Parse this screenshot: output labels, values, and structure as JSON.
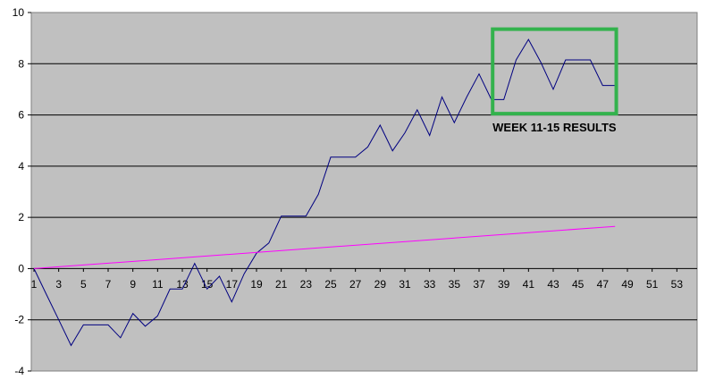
{
  "chart_data": {
    "type": "line",
    "title": "",
    "xlabel": "",
    "ylabel": "",
    "ylim": [
      -4,
      10
    ],
    "yticks": [
      -4,
      -2,
      0,
      2,
      4,
      6,
      8,
      10
    ],
    "xlim": [
      1,
      55
    ],
    "xticks": [
      1,
      3,
      5,
      7,
      9,
      11,
      13,
      15,
      17,
      19,
      21,
      23,
      25,
      27,
      29,
      31,
      33,
      35,
      37,
      39,
      41,
      43,
      45,
      47,
      49,
      51,
      53
    ],
    "grid": "horizontal",
    "plot_background": "#c0c0c0",
    "series": [
      {
        "color": "#000080",
        "x": [
          1,
          2,
          3,
          4,
          5,
          6,
          7,
          8,
          9,
          10,
          11,
          12,
          13,
          14,
          15,
          16,
          17,
          18,
          19,
          20,
          21,
          22,
          23,
          24,
          25,
          26,
          27,
          28,
          29,
          30,
          31,
          32,
          33,
          34,
          35,
          36,
          37,
          38,
          39,
          40,
          41,
          42,
          43,
          44,
          45,
          46,
          47,
          48
        ],
        "values": [
          0,
          -1,
          -2,
          -3,
          -2.2,
          -2.2,
          -2.2,
          -2.7,
          -1.75,
          -2.25,
          -1.85,
          -0.8,
          -0.8,
          0.2,
          -0.8,
          -0.3,
          -1.3,
          -0.2,
          0.6,
          1,
          2.05,
          2.05,
          2.05,
          2.9,
          4.35,
          4.35,
          4.35,
          4.75,
          5.6,
          4.6,
          5.3,
          6.2,
          5.2,
          6.7,
          5.7,
          6.7,
          7.6,
          6.6,
          6.6,
          8.15,
          8.95,
          8.05,
          7,
          8.15,
          8.15,
          8.15,
          7.15,
          7.15
        ]
      },
      {
        "color": "#ff00ff",
        "x": [
          1,
          48
        ],
        "values": [
          0,
          1.65
        ]
      }
    ],
    "annotations": [
      {
        "text": "WEEK 11-15 RESULTS",
        "x_range": [
          38.1,
          48.1
        ],
        "y_range": [
          6.05,
          9.35
        ],
        "box_color": "#33b24d"
      }
    ]
  }
}
